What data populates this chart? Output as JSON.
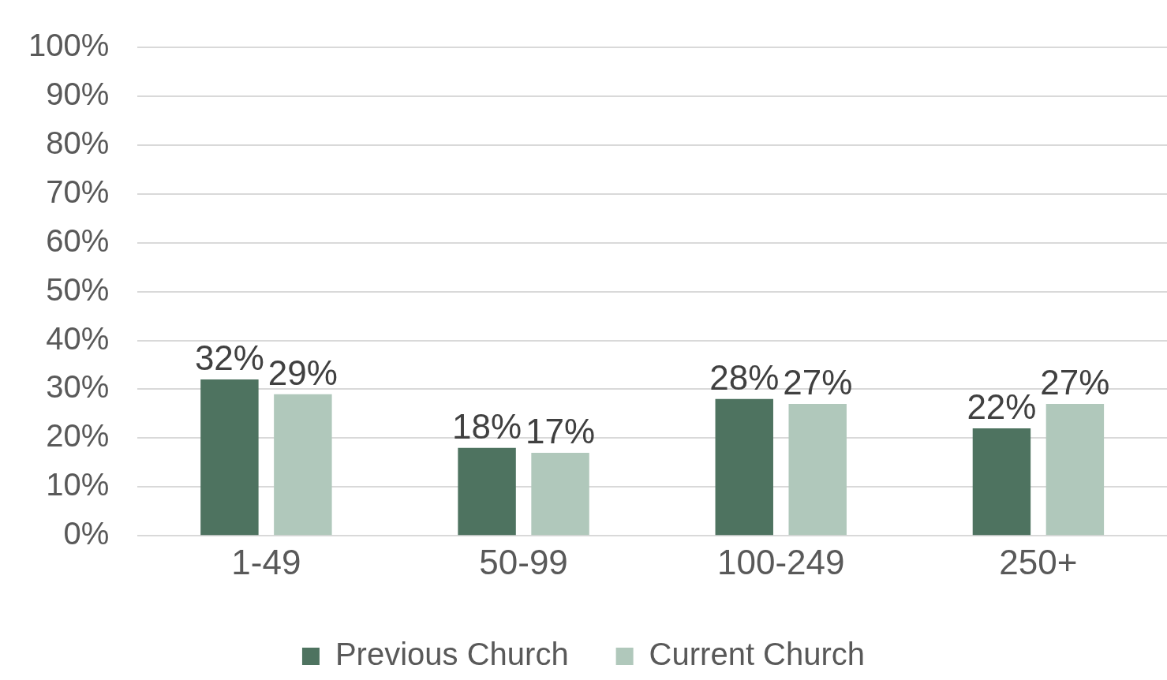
{
  "chart_data": {
    "type": "bar",
    "categories": [
      "1-49",
      "50-99",
      "100-249",
      "250+"
    ],
    "series": [
      {
        "name": "Previous Church",
        "color": "#4e7360",
        "values": [
          32,
          18,
          28,
          22
        ],
        "value_labels": [
          "32%",
          "18%",
          "28%",
          "22%"
        ]
      },
      {
        "name": "Current Church",
        "color": "#b0c8bb",
        "values": [
          29,
          17,
          27,
          27
        ],
        "value_labels": [
          "29%",
          "17%",
          "27%",
          "27%"
        ]
      }
    ],
    "ylim": [
      0,
      100
    ],
    "yticks": [
      {
        "value": 0,
        "label": "0%"
      },
      {
        "value": 10,
        "label": "10%"
      },
      {
        "value": 20,
        "label": "20%"
      },
      {
        "value": 30,
        "label": "30%"
      },
      {
        "value": 40,
        "label": "40%"
      },
      {
        "value": 50,
        "label": "50%"
      },
      {
        "value": 60,
        "label": "60%"
      },
      {
        "value": 70,
        "label": "70%"
      },
      {
        "value": 80,
        "label": "80%"
      },
      {
        "value": 90,
        "label": "90%"
      },
      {
        "value": 100,
        "label": "100%"
      }
    ],
    "grid": "y",
    "legend": "bottom"
  }
}
